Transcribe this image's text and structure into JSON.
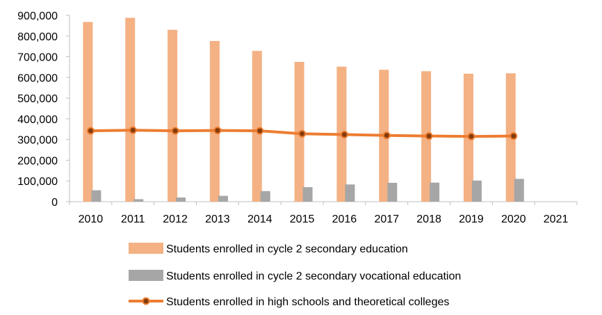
{
  "chart_data": {
    "type": "bar",
    "categories": [
      "2010",
      "2011",
      "2012",
      "2013",
      "2014",
      "2015",
      "2016",
      "2017",
      "2018",
      "2019",
      "2020",
      "2021"
    ],
    "ylim": [
      0,
      900000
    ],
    "yticks": [
      "0",
      "100,000",
      "200,000",
      "300,000",
      "400,000",
      "500,000",
      "600,000",
      "700,000",
      "800,000",
      "900,000"
    ],
    "grid": false,
    "legend_position": "bottom",
    "series": [
      {
        "name": "Students enrolled in cycle 2 secondary education",
        "kind": "bar",
        "color": "#F4B183",
        "values": [
          868000,
          888000,
          830000,
          776000,
          728000,
          675000,
          652000,
          637000,
          630000,
          618000,
          620000,
          null
        ]
      },
      {
        "name": "Students enrolled in cycle 2 secondary vocational education",
        "kind": "bar",
        "color": "#A6A6A6",
        "values": [
          55000,
          12000,
          20000,
          28000,
          51000,
          70000,
          83000,
          91000,
          92000,
          102000,
          110000,
          null
        ]
      },
      {
        "name": "Students enrolled in high schools and theoretical colleges",
        "kind": "line",
        "color": "#ED7D31",
        "marker_fill": "#843C0C",
        "values": [
          342000,
          345000,
          342000,
          344000,
          342000,
          328000,
          324000,
          320000,
          317000,
          315000,
          317000,
          null
        ]
      }
    ]
  }
}
